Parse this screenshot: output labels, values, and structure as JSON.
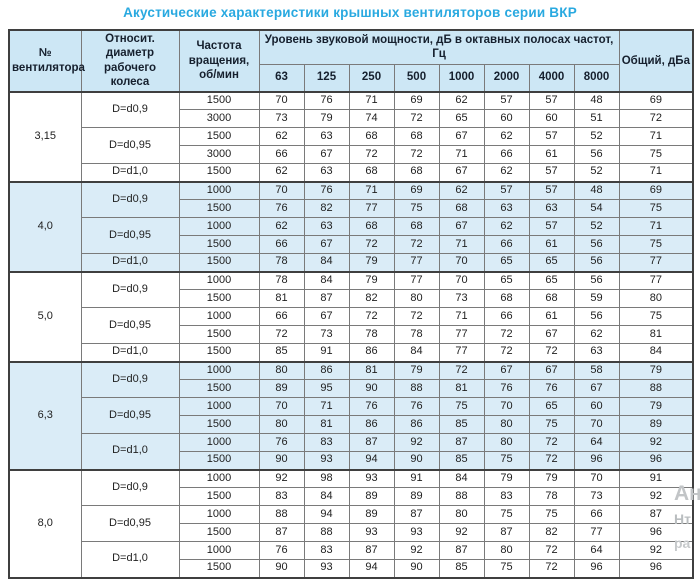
{
  "title": "Акустические характеристики крышных вентиляторов серии ВКР",
  "colors": {
    "title_blue": "#29a9e0",
    "header_bg": "#cde7f5",
    "shaded_row_bg": "#daecf7",
    "border_dark": "#3f3f3f",
    "border_light": "#7a7a7a"
  },
  "table": {
    "headers": {
      "fan_no": "№ вентилятора",
      "diameter": "Относит. диаметр рабочего колеса",
      "speed": "Частота вращения, об/мин",
      "spl": "Уровень звуковой мощности, дБ в октавных полосах частот, Гц",
      "freqs": [
        "63",
        "125",
        "250",
        "500",
        "1000",
        "2000",
        "4000",
        "8000"
      ],
      "total": "Общий, дБа"
    },
    "groups": [
      {
        "fan": "3,15",
        "shaded": false,
        "subgroups": [
          {
            "d": "D=d0,9",
            "rows": [
              {
                "rpm": "1500",
                "levels": [
                  70,
                  76,
                  71,
                  69,
                  62,
                  57,
                  57,
                  48
                ],
                "total": 69
              },
              {
                "rpm": "3000",
                "levels": [
                  73,
                  79,
                  74,
                  72,
                  65,
                  60,
                  60,
                  51
                ],
                "total": 72
              }
            ]
          },
          {
            "d": "D=d0,95",
            "rows": [
              {
                "rpm": "1500",
                "levels": [
                  62,
                  63,
                  68,
                  68,
                  67,
                  62,
                  57,
                  52
                ],
                "total": 71
              },
              {
                "rpm": "3000",
                "levels": [
                  66,
                  67,
                  72,
                  72,
                  71,
                  66,
                  61,
                  56
                ],
                "total": 75
              }
            ]
          },
          {
            "d": "D=d1,0",
            "rows": [
              {
                "rpm": "1500",
                "levels": [
                  62,
                  63,
                  68,
                  68,
                  67,
                  62,
                  57,
                  52
                ],
                "total": 71
              }
            ]
          }
        ]
      },
      {
        "fan": "4,0",
        "shaded": true,
        "subgroups": [
          {
            "d": "D=d0,9",
            "rows": [
              {
                "rpm": "1000",
                "levels": [
                  70,
                  76,
                  71,
                  69,
                  62,
                  57,
                  57,
                  48
                ],
                "total": 69
              },
              {
                "rpm": "1500",
                "levels": [
                  76,
                  82,
                  77,
                  75,
                  68,
                  63,
                  63,
                  54
                ],
                "total": 75
              }
            ]
          },
          {
            "d": "D=d0,95",
            "rows": [
              {
                "rpm": "1000",
                "levels": [
                  62,
                  63,
                  68,
                  68,
                  67,
                  62,
                  57,
                  52
                ],
                "total": 71
              },
              {
                "rpm": "1500",
                "levels": [
                  66,
                  67,
                  72,
                  72,
                  71,
                  66,
                  61,
                  56
                ],
                "total": 75
              }
            ]
          },
          {
            "d": "D=d1,0",
            "rows": [
              {
                "rpm": "1500",
                "levels": [
                  78,
                  84,
                  79,
                  77,
                  70,
                  65,
                  65,
                  56
                ],
                "total": 77
              }
            ]
          }
        ]
      },
      {
        "fan": "5,0",
        "shaded": false,
        "subgroups": [
          {
            "d": "D=d0,9",
            "rows": [
              {
                "rpm": "1000",
                "levels": [
                  78,
                  84,
                  79,
                  77,
                  70,
                  65,
                  65,
                  56
                ],
                "total": 77
              },
              {
                "rpm": "1500",
                "levels": [
                  81,
                  87,
                  82,
                  80,
                  73,
                  68,
                  68,
                  59
                ],
                "total": 80
              }
            ]
          },
          {
            "d": "D=d0,95",
            "rows": [
              {
                "rpm": "1000",
                "levels": [
                  66,
                  67,
                  72,
                  72,
                  71,
                  66,
                  61,
                  56
                ],
                "total": 75
              },
              {
                "rpm": "1500",
                "levels": [
                  72,
                  73,
                  78,
                  78,
                  77,
                  72,
                  67,
                  62
                ],
                "total": 81
              }
            ]
          },
          {
            "d": "D=d1,0",
            "rows": [
              {
                "rpm": "1500",
                "levels": [
                  85,
                  91,
                  86,
                  84,
                  77,
                  72,
                  72,
                  63
                ],
                "total": 84
              }
            ]
          }
        ]
      },
      {
        "fan": "6,3",
        "shaded": true,
        "subgroups": [
          {
            "d": "D=d0,9",
            "rows": [
              {
                "rpm": "1000",
                "levels": [
                  80,
                  86,
                  81,
                  79,
                  72,
                  67,
                  67,
                  58
                ],
                "total": 79
              },
              {
                "rpm": "1500",
                "levels": [
                  89,
                  95,
                  90,
                  88,
                  81,
                  76,
                  76,
                  67
                ],
                "total": 88
              }
            ]
          },
          {
            "d": "D=d0,95",
            "rows": [
              {
                "rpm": "1000",
                "levels": [
                  70,
                  71,
                  76,
                  76,
                  75,
                  70,
                  65,
                  60
                ],
                "total": 79
              },
              {
                "rpm": "1500",
                "levels": [
                  80,
                  81,
                  86,
                  86,
                  85,
                  80,
                  75,
                  70
                ],
                "total": 89
              }
            ]
          },
          {
            "d": "D=d1,0",
            "rows": [
              {
                "rpm": "1000",
                "levels": [
                  76,
                  83,
                  87,
                  92,
                  87,
                  80,
                  72,
                  64
                ],
                "total": 92
              },
              {
                "rpm": "1500",
                "levels": [
                  90,
                  93,
                  94,
                  90,
                  85,
                  75,
                  72,
                  96
                ],
                "total": 96
              }
            ]
          }
        ]
      },
      {
        "fan": "8,0",
        "shaded": false,
        "subgroups": [
          {
            "d": "D=d0,9",
            "rows": [
              {
                "rpm": "1000",
                "levels": [
                  92,
                  98,
                  93,
                  91,
                  84,
                  79,
                  79,
                  70
                ],
                "total": 91
              },
              {
                "rpm": "1500",
                "levels": [
                  83,
                  84,
                  89,
                  89,
                  88,
                  83,
                  78,
                  73
                ],
                "total": 92
              }
            ]
          },
          {
            "d": "D=d0,95",
            "rows": [
              {
                "rpm": "1000",
                "levels": [
                  88,
                  94,
                  89,
                  87,
                  80,
                  75,
                  75,
                  66
                ],
                "total": 87
              },
              {
                "rpm": "1500",
                "levels": [
                  87,
                  88,
                  93,
                  93,
                  92,
                  87,
                  82,
                  77
                ],
                "total": 96
              }
            ]
          },
          {
            "d": "D=d1,0",
            "rows": [
              {
                "rpm": "1000",
                "levels": [
                  76,
                  83,
                  87,
                  92,
                  87,
                  80,
                  72,
                  64
                ],
                "total": 92
              },
              {
                "rpm": "1500",
                "levels": [
                  90,
                  93,
                  94,
                  90,
                  85,
                  75,
                  72,
                  96
                ],
                "total": 96
              }
            ]
          }
        ]
      }
    ]
  },
  "watermark": {
    "fragments": [
      "Ан",
      "Нт",
      "ра"
    ]
  }
}
